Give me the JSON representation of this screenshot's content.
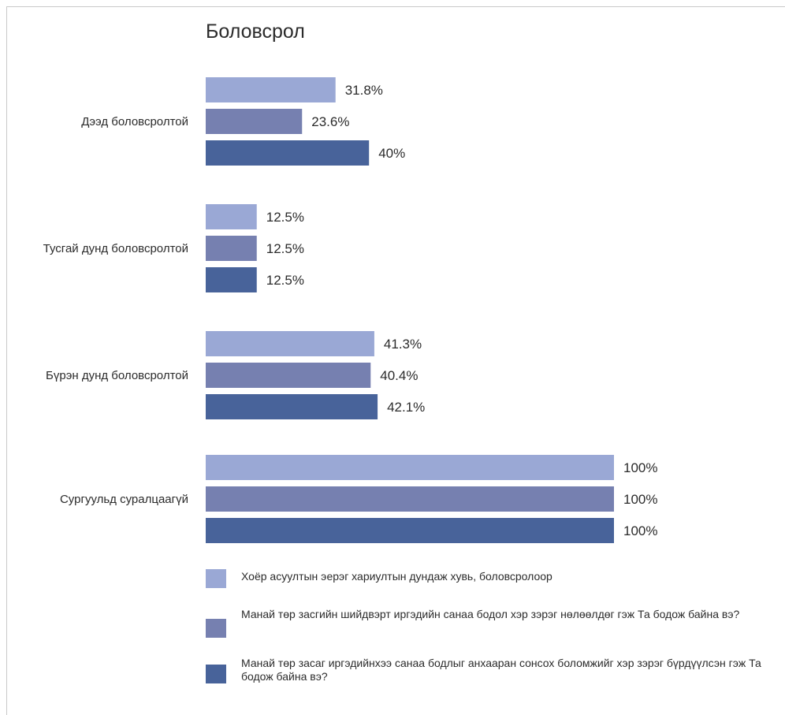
{
  "colors": {
    "series1": "#9aa8d5",
    "series2": "#7680b0",
    "series3": "#48639a"
  },
  "chart_data": {
    "type": "bar",
    "orientation": "horizontal",
    "title": "Боловсрол",
    "categories": [
      "Дээд боловсролтой",
      "Тусгай дунд боловсролтой",
      "Бүрэн дунд боловсролтой",
      "Сургуульд суралцаагүй"
    ],
    "series": [
      {
        "name": "Хоёр асуултын эерэг хариултын дундаж хувь, боловсролоор",
        "values": [
          31.8,
          12.5,
          41.3,
          100
        ],
        "labels": [
          "31.8%",
          "12.5%",
          "41.3%",
          "100%"
        ]
      },
      {
        "name": "Манай төр засгийн шийдвэрт иргэдийн санаа бодол хэр зэрэг нөлөөлдөг гэж Та бодож байна вэ?",
        "values": [
          23.6,
          12.5,
          40.4,
          100
        ],
        "labels": [
          "23.6%",
          "12.5%",
          "40.4%",
          "100%"
        ]
      },
      {
        "name": "Манай төр засаг иргэдийнхээ санаа бодлыг анхааран сонсох боломжийг хэр зэрэг бүрдүүлсэн гэж Та бодож байна вэ?",
        "values": [
          40,
          12.5,
          42.1,
          100
        ],
        "labels": [
          "40%",
          "12.5%",
          "42.1%",
          "100%"
        ]
      }
    ],
    "xlim": [
      0,
      100
    ],
    "grid": false,
    "legend": "bottom"
  }
}
